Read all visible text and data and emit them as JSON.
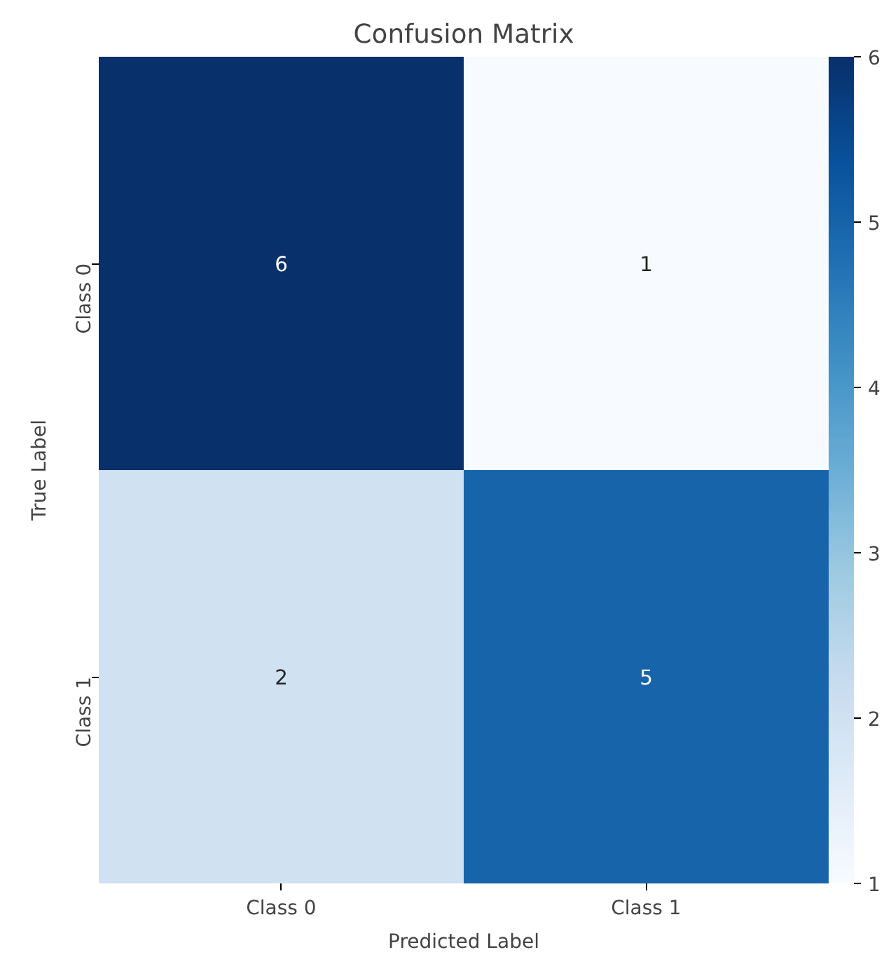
{
  "chart_data": {
    "type": "heatmap",
    "title": "Confusion Matrix",
    "xlabel": "Predicted Label",
    "ylabel": "True Label",
    "categories": [
      "Class 0",
      "Class 1"
    ],
    "y_categories": [
      "Class 0",
      "Class 1"
    ],
    "cells": [
      [
        6,
        1
      ],
      [
        2,
        5
      ]
    ],
    "clim": [
      1,
      6
    ],
    "cticks": [
      1,
      2,
      3,
      4,
      5,
      6
    ],
    "data_labels": true
  }
}
